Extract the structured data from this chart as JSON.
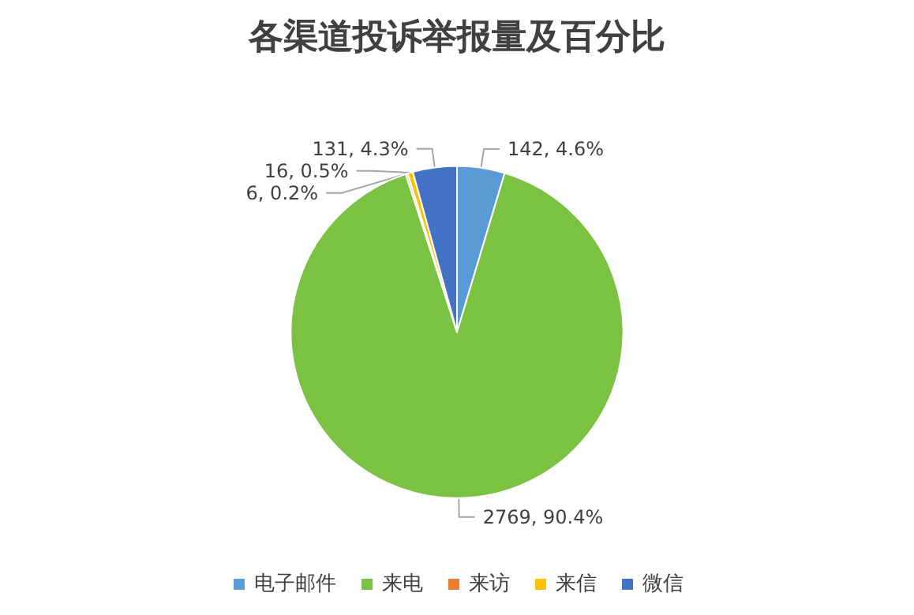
{
  "chart_data": {
    "type": "pie",
    "title": "各渠道投诉举报量及百分比",
    "categories": [
      "电子邮件",
      "来电",
      "来访",
      "来信",
      "微信"
    ],
    "values": [
      142,
      2769,
      6,
      16,
      131
    ],
    "colors": [
      "#5b9bd5",
      "#7cc242",
      "#ed7d31",
      "#ffc000",
      "#4472c4"
    ],
    "value_labels": [
      "142, 4.6%",
      "2769, 90.4%",
      "6, 0.2%",
      "16, 0.5%",
      "131, 4.3%"
    ],
    "legend": "bottom"
  }
}
